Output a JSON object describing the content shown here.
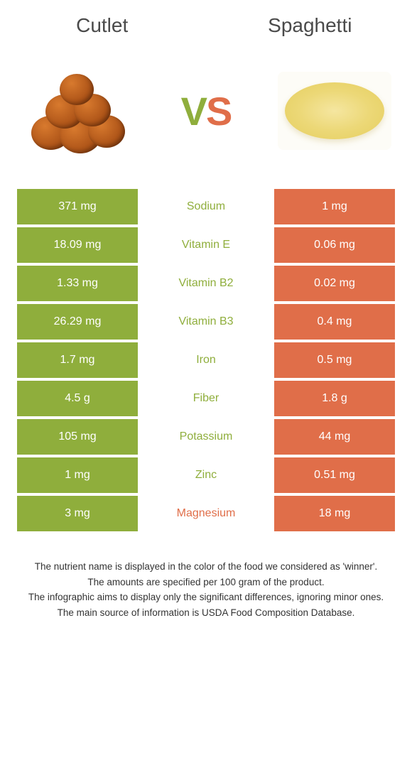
{
  "colors": {
    "left": "#8fae3c",
    "right": "#e06e49",
    "bg": "#ffffff",
    "text": "#333333",
    "title": "#4a4a4a"
  },
  "titles": {
    "left": "Cutlet",
    "right": "Spaghetti"
  },
  "vs": {
    "v": "V",
    "s": "S"
  },
  "rows": [
    {
      "left": "371 mg",
      "label": "Sodium",
      "right": "1 mg",
      "winner": "left"
    },
    {
      "left": "18.09 mg",
      "label": "Vitamin E",
      "right": "0.06 mg",
      "winner": "left"
    },
    {
      "left": "1.33 mg",
      "label": "Vitamin B2",
      "right": "0.02 mg",
      "winner": "left"
    },
    {
      "left": "26.29 mg",
      "label": "Vitamin B3",
      "right": "0.4 mg",
      "winner": "left"
    },
    {
      "left": "1.7 mg",
      "label": "Iron",
      "right": "0.5 mg",
      "winner": "left"
    },
    {
      "left": "4.5 g",
      "label": "Fiber",
      "right": "1.8 g",
      "winner": "left"
    },
    {
      "left": "105 mg",
      "label": "Potassium",
      "right": "44 mg",
      "winner": "left"
    },
    {
      "left": "1 mg",
      "label": "Zinc",
      "right": "0.51 mg",
      "winner": "left"
    },
    {
      "left": "3 mg",
      "label": "Magnesium",
      "right": "18 mg",
      "winner": "right"
    }
  ],
  "footer": [
    "The nutrient name is displayed in the color of the food we considered as 'winner'.",
    "The amounts are specified per 100 gram of the product.",
    "The infographic aims to display only the significant differences, ignoring minor ones.",
    "The main source of information is USDA Food Composition Database."
  ]
}
